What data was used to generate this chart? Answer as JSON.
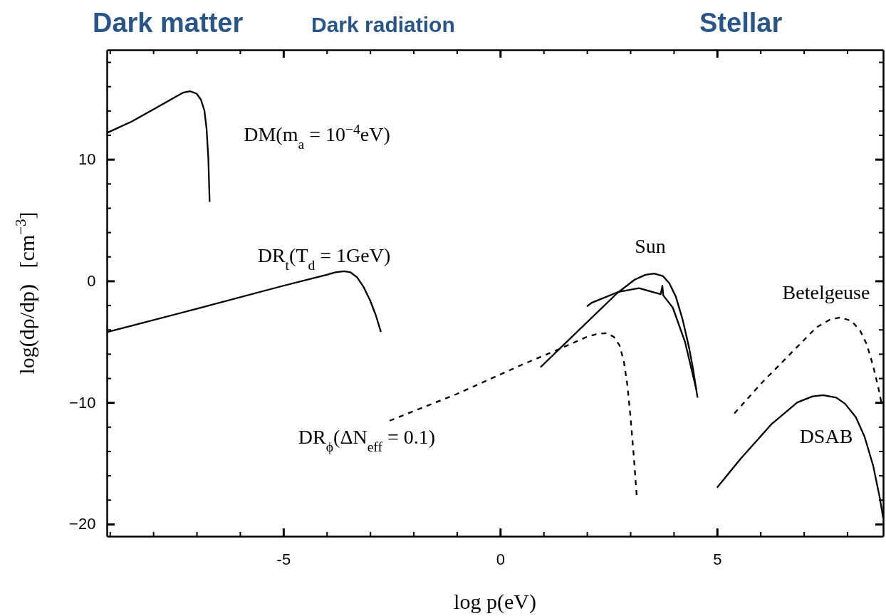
{
  "chart_data": {
    "type": "line",
    "xlabel": "log p(eV)",
    "ylabel": "log(dρ/dp)   [cm$^{−3}$]",
    "xlim": [
      -9.07,
      8.83
    ],
    "ylim": [
      -21,
      19
    ],
    "xticks": [
      {
        "value": -9,
        "label": null
      },
      {
        "value": -8,
        "label": null
      },
      {
        "value": -7,
        "label": null
      },
      {
        "value": -6,
        "label": null
      },
      -5,
      {
        "value": -4,
        "label": null
      },
      {
        "value": -3,
        "label": null
      },
      {
        "value": -2,
        "label": null
      },
      {
        "value": -1,
        "label": null
      },
      0,
      {
        "value": 1,
        "label": null
      },
      {
        "value": 2,
        "label": null
      },
      {
        "value": 3,
        "label": null
      },
      {
        "value": 4,
        "label": null
      },
      5,
      {
        "value": 6,
        "label": null
      },
      {
        "value": 7,
        "label": null
      },
      {
        "value": 8,
        "label": null
      }
    ],
    "yticks": [
      {
        "value": -20,
        "label": "−20"
      },
      {
        "value": -18,
        "label": null
      },
      {
        "value": -16,
        "label": null
      },
      {
        "value": -14,
        "label": null
      },
      {
        "value": -12,
        "label": null
      },
      {
        "value": -10,
        "label": "−10"
      },
      {
        "value": -8,
        "label": null
      },
      {
        "value": -6,
        "label": null
      },
      {
        "value": -4,
        "label": null
      },
      {
        "value": -2,
        "label": null
      },
      0,
      {
        "value": 2,
        "label": null
      },
      {
        "value": 4,
        "label": null
      },
      {
        "value": 6,
        "label": null
      },
      {
        "value": 8,
        "label": null
      },
      10,
      {
        "value": 12,
        "label": null
      },
      {
        "value": 14,
        "label": null
      },
      {
        "value": 16,
        "label": null
      },
      {
        "value": 18,
        "label": null
      }
    ],
    "grid": false,
    "legend": false,
    "marker": "none",
    "series": [
      {
        "name": "DM(m$_{a}$ = 10$^{−4}$eV)",
        "color": "#000000",
        "line_style": "solid",
        "x": [
          -9.05,
          -8.5,
          -8,
          -7.5,
          -7.3,
          -7.15,
          -7.0,
          -6.9,
          -6.82,
          -6.77,
          -6.73,
          -6.7
        ],
        "values": [
          12.2,
          13.1,
          14.1,
          15.1,
          15.5,
          15.6,
          15.4,
          14.9,
          14.0,
          12.5,
          10.1,
          6.5
        ]
      },
      {
        "name": "DR$_{t}$(T$_{d}$ = 1GeV)",
        "color": "#000000",
        "line_style": "solid",
        "x": [
          -9.05,
          -7,
          -5,
          -4,
          -3.8,
          -3.6,
          -3.45,
          -3.3,
          -3.15,
          -3.0,
          -2.87,
          -2.75
        ],
        "values": [
          -4.2,
          -2.3,
          -0.4,
          0.5,
          0.7,
          0.8,
          0.7,
          0.3,
          -0.5,
          -1.6,
          -2.8,
          -4.2
        ]
      },
      {
        "name": "DR$_{ϕ}$(ΔN$_{eff}$ = 0.1)",
        "color": "#000000",
        "line_style": "dashed",
        "x": [
          -2.55,
          -1,
          0.5,
          1.3,
          2,
          2.25,
          2.45,
          2.62,
          2.75,
          2.85,
          2.93,
          3.0,
          3.08,
          3.15
        ],
        "values": [
          -11.5,
          -9.3,
          -6.9,
          -5.7,
          -4.6,
          -4.35,
          -4.3,
          -4.6,
          -5.3,
          -6.6,
          -8.5,
          -11.0,
          -14.4,
          -17.8
        ]
      },
      {
        "name": "Sun",
        "color": "#000000",
        "line_style": "solid",
        "x": [
          0.93,
          1.8,
          2.7,
          3.1,
          3.35,
          3.55,
          3.75,
          3.9,
          4.05,
          4.2,
          4.35,
          4.45,
          4.55
        ],
        "values": [
          -7.1,
          -4.1,
          -1.0,
          0.1,
          0.5,
          0.6,
          0.4,
          -0.2,
          -1.3,
          -3.1,
          -5.4,
          -7.3,
          -9.6
        ]
      },
      {
        "color": "#000000",
        "line_style": "solid",
        "x": [
          2.0,
          2.11,
          2.73,
          3.2,
          3.7,
          3.74,
          3.76,
          3.98,
          4.26,
          4.52
        ],
        "values": [
          -2.1,
          -1.8,
          -0.9,
          -0.6,
          -1.1,
          -0.4,
          -1.2,
          -2.2,
          -5.0,
          -8.9
        ]
      },
      {
        "color": "#000000",
        "line_style": "dashed",
        "x": [
          5.4,
          6,
          6.8,
          7.3,
          7.6,
          7.85,
          8.1,
          8.3,
          8.45,
          8.6,
          8.72,
          8.8
        ],
        "values": [
          -10.9,
          -8.5,
          -5.6,
          -3.8,
          -3.2,
          -3.0,
          -3.3,
          -4.1,
          -5.2,
          -7.0,
          -8.8,
          -10.2
        ]
      },
      {
        "color": "#000000",
        "line_style": "solid",
        "x": [
          5.0,
          5.55,
          6.25,
          6.85,
          7.2,
          7.45,
          7.75,
          7.95,
          8.2,
          8.4,
          8.6,
          8.75,
          8.83
        ],
        "values": [
          -17.0,
          -14.6,
          -11.8,
          -10.0,
          -9.5,
          -9.4,
          -9.6,
          -10.1,
          -11.2,
          -12.8,
          -15.2,
          -17.8,
          -19.5
        ]
      }
    ],
    "annotations": [
      "Dark matter",
      "Dark radiation",
      "Stellar",
      "Betelgeuse",
      "DSAB"
    ]
  }
}
